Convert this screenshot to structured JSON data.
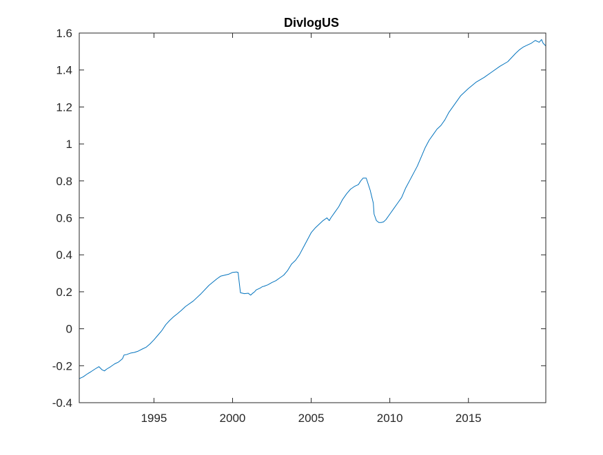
{
  "chart_data": {
    "type": "line",
    "title": "DivlogUS",
    "xlabel": "",
    "ylabel": "",
    "xlim": [
      1990.25,
      2019.92
    ],
    "ylim": [
      -0.4,
      1.6
    ],
    "x_ticks": [
      1995,
      2000,
      2005,
      2010,
      2015
    ],
    "x_tick_labels": [
      "1995",
      "2000",
      "2005",
      "2010",
      "2015"
    ],
    "y_ticks": [
      -0.4,
      -0.2,
      0,
      0.2,
      0.4,
      0.6,
      0.8,
      1,
      1.2,
      1.4,
      1.6
    ],
    "y_tick_labels": [
      "-0.4",
      "-0.2",
      "0",
      "0.2",
      "0.4",
      "0.6",
      "0.8",
      "1",
      "1.2",
      "1.4",
      "1.6"
    ],
    "grid": false,
    "legend": "none",
    "series": [
      {
        "color": "#0072BD",
        "x": [
          1990.25,
          1990.5,
          1990.75,
          1991.0,
          1991.25,
          1991.5,
          1991.7,
          1991.85,
          1992.0,
          1992.25,
          1992.5,
          1992.75,
          1993.0,
          1993.1,
          1993.25,
          1993.5,
          1993.75,
          1994.0,
          1994.25,
          1994.5,
          1994.75,
          1995.0,
          1995.25,
          1995.5,
          1995.75,
          1996.0,
          1996.25,
          1996.5,
          1996.75,
          1997.0,
          1997.5,
          1998.0,
          1998.5,
          1999.0,
          1999.25,
          1999.5,
          1999.75,
          2000.0,
          2000.25,
          2000.35,
          2000.5,
          2000.75,
          2001.0,
          2001.15,
          2001.25,
          2001.4,
          2001.5,
          2001.75,
          2001.9,
          2002.0,
          2002.25,
          2002.5,
          2002.75,
          2003.0,
          2003.25,
          2003.5,
          2003.75,
          2004.0,
          2004.25,
          2004.5,
          2004.75,
          2005.0,
          2005.25,
          2005.5,
          2005.75,
          2006.0,
          2006.15,
          2006.25,
          2006.5,
          2006.75,
          2007.0,
          2007.25,
          2007.5,
          2007.75,
          2008.0,
          2008.15,
          2008.3,
          2008.5,
          2008.75,
          2008.95,
          2009.0,
          2009.15,
          2009.3,
          2009.45,
          2009.6,
          2009.75,
          2010.0,
          2010.25,
          2010.5,
          2010.75,
          2011.0,
          2011.25,
          2011.5,
          2011.75,
          2012.0,
          2012.25,
          2012.5,
          2012.75,
          2013.0,
          2013.25,
          2013.5,
          2013.75,
          2014.0,
          2014.5,
          2015.0,
          2015.5,
          2016.0,
          2016.5,
          2017.0,
          2017.5,
          2018.0,
          2018.25,
          2018.5,
          2018.75,
          2019.0,
          2019.25,
          2019.5,
          2019.65,
          2019.75,
          2019.92
        ],
        "y": [
          -0.27,
          -0.26,
          -0.245,
          -0.232,
          -0.218,
          -0.205,
          -0.222,
          -0.228,
          -0.218,
          -0.205,
          -0.19,
          -0.18,
          -0.162,
          -0.142,
          -0.14,
          -0.132,
          -0.128,
          -0.121,
          -0.11,
          -0.1,
          -0.082,
          -0.06,
          -0.035,
          -0.01,
          0.022,
          0.045,
          0.065,
          0.082,
          0.1,
          0.12,
          0.15,
          0.19,
          0.235,
          0.27,
          0.285,
          0.29,
          0.295,
          0.305,
          0.307,
          0.305,
          0.195,
          0.19,
          0.192,
          0.182,
          0.19,
          0.2,
          0.21,
          0.22,
          0.228,
          0.23,
          0.238,
          0.25,
          0.26,
          0.275,
          0.29,
          0.315,
          0.35,
          0.37,
          0.4,
          0.44,
          0.48,
          0.52,
          0.545,
          0.565,
          0.585,
          0.6,
          0.585,
          0.6,
          0.63,
          0.66,
          0.7,
          0.73,
          0.755,
          0.77,
          0.78,
          0.8,
          0.815,
          0.815,
          0.75,
          0.68,
          0.62,
          0.585,
          0.575,
          0.575,
          0.578,
          0.59,
          0.62,
          0.65,
          0.68,
          0.71,
          0.76,
          0.8,
          0.84,
          0.88,
          0.93,
          0.98,
          1.02,
          1.05,
          1.08,
          1.1,
          1.13,
          1.17,
          1.2,
          1.26,
          1.3,
          1.335,
          1.36,
          1.39,
          1.42,
          1.445,
          1.49,
          1.51,
          1.525,
          1.535,
          1.545,
          1.56,
          1.55,
          1.565,
          1.545,
          1.53
        ]
      }
    ]
  }
}
